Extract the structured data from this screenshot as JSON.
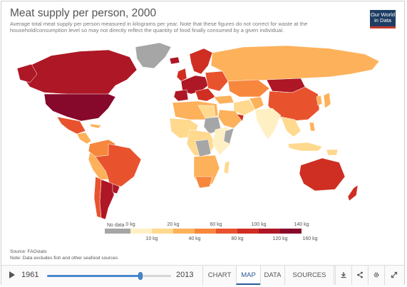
{
  "title": "Meat supply per person, 2000",
  "subtitle": "Average total meat supply per person measured in kilograms per year. Note that these figures do not correct for waste at the household/consumption level so may not directly reflect the quantity of food finally consumed by a given individual.",
  "logo": {
    "line1": "Our World",
    "line2": "in Data"
  },
  "legend": {
    "no_data_label": "No data",
    "top_labels": [
      "0 kg",
      "20 kg",
      "60 kg",
      "100 kg",
      "140 kg"
    ],
    "bottom_labels": [
      "10 kg",
      "40 kg",
      "80 kg",
      "120 kg",
      "160 kg"
    ],
    "no_data_color": "#a6a6a6",
    "colors": [
      "#fff0c4",
      "#fed98e",
      "#fdb15a",
      "#f7873d",
      "#e8532e",
      "#cf2e22",
      "#ae1726",
      "#86082b"
    ]
  },
  "source": {
    "line1": "Source: FAOstats",
    "line2": "Note: Data excludes fish and other seafood sources"
  },
  "timeline": {
    "start_year": "1961",
    "end_year": "2013",
    "position": 0.75
  },
  "tabs": [
    "CHART",
    "MAP",
    "DATA",
    "SOURCES"
  ],
  "active_tab": "MAP",
  "icons": [
    "download-icon",
    "share-icon",
    "settings-icon",
    "expand-icon"
  ]
}
